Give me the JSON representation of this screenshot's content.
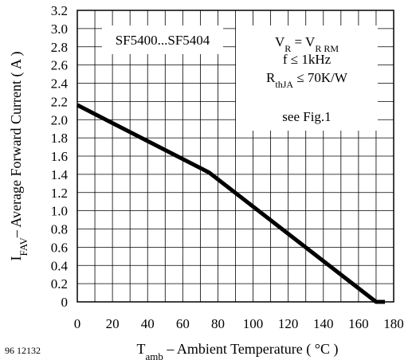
{
  "chart_data": {
    "type": "line",
    "xlabel": {
      "prefix": "T",
      "sub": "amb",
      "rest": " – Ambient Temperature ( °C )"
    },
    "ylabel": {
      "prefix": "I",
      "sub": "FAV",
      "rest": "– Average Forward Current ( A )"
    },
    "xlim": [
      0,
      180
    ],
    "ylim": [
      0,
      3.2
    ],
    "x_ticks": [
      "0",
      "20",
      "40",
      "60",
      "80",
      "100",
      "120",
      "140",
      "160",
      "180"
    ],
    "y_ticks": [
      "0",
      "0.2",
      "0.4",
      "0.6",
      "0.8",
      "1.0",
      "1.2",
      "1.4",
      "1.6",
      "1.8",
      "2.0",
      "2.2",
      "2.4",
      "2.6",
      "2.8",
      "3.0",
      "3.2"
    ],
    "x_grid_step": 10,
    "y_grid_step": 0.2,
    "grid": true,
    "series": [
      {
        "x": [
          0,
          75,
          170,
          175
        ],
        "y": [
          2.16,
          1.42,
          0,
          0
        ]
      }
    ],
    "annotations": {
      "device": "SF5400...SF5404",
      "condition1": {
        "a": "V",
        "a_sub": "R",
        "mid": " = V",
        "b_sub": "R RM"
      },
      "condition2": "f ≤ 1kHz",
      "condition3": {
        "a": "R",
        "a_sub": "thJA",
        "rest": " ≤ 70K/W"
      },
      "condition4": "see Fig.1"
    },
    "figure_id": "96 12132",
    "line_color": "#000000"
  }
}
